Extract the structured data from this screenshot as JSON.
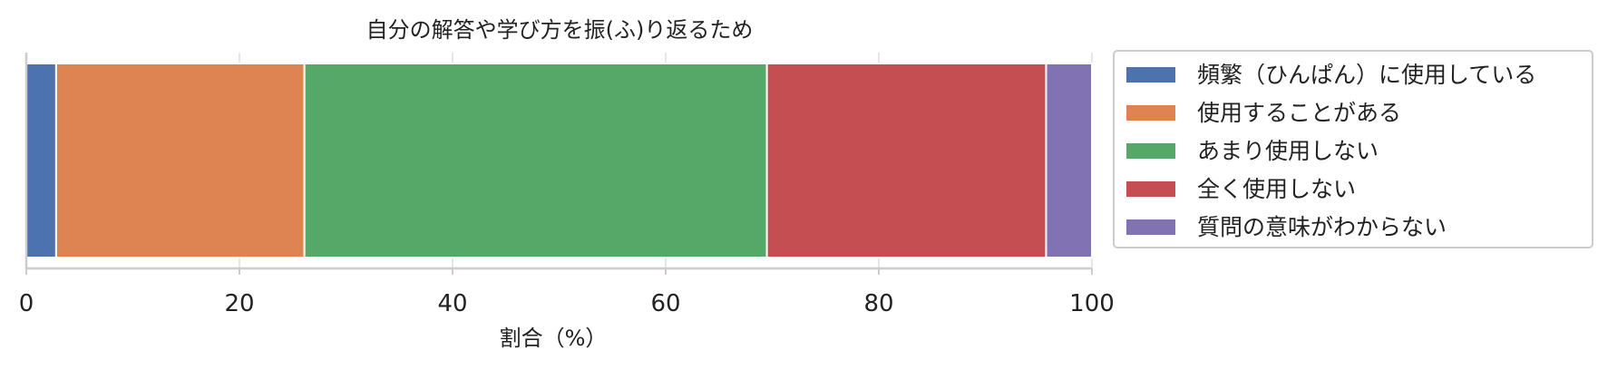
{
  "chart_data": {
    "type": "bar",
    "orientation": "horizontal",
    "stacked": true,
    "title": "自分の解答や学び方を振(ふ)り返るため",
    "xlabel": "割合（%）",
    "ylabel": "",
    "xlim": [
      0,
      100
    ],
    "xticks": [
      "0",
      "20",
      "40",
      "60",
      "80",
      "100"
    ],
    "grid": "vertical",
    "legend_position": "right",
    "series": [
      {
        "name": "頻繁（ひんぱん）に使用している",
        "value": 2.8,
        "color": "#4c72b0"
      },
      {
        "name": "使用することがある",
        "value": 23.3,
        "color": "#dd8452"
      },
      {
        "name": "あまり使用しない",
        "value": 43.4,
        "color": "#55a868"
      },
      {
        "name": "全く使用しない",
        "value": 26.2,
        "color": "#c44e52"
      },
      {
        "name": "質問の意味がわからない",
        "value": 4.3,
        "color": "#8172b3"
      }
    ]
  }
}
